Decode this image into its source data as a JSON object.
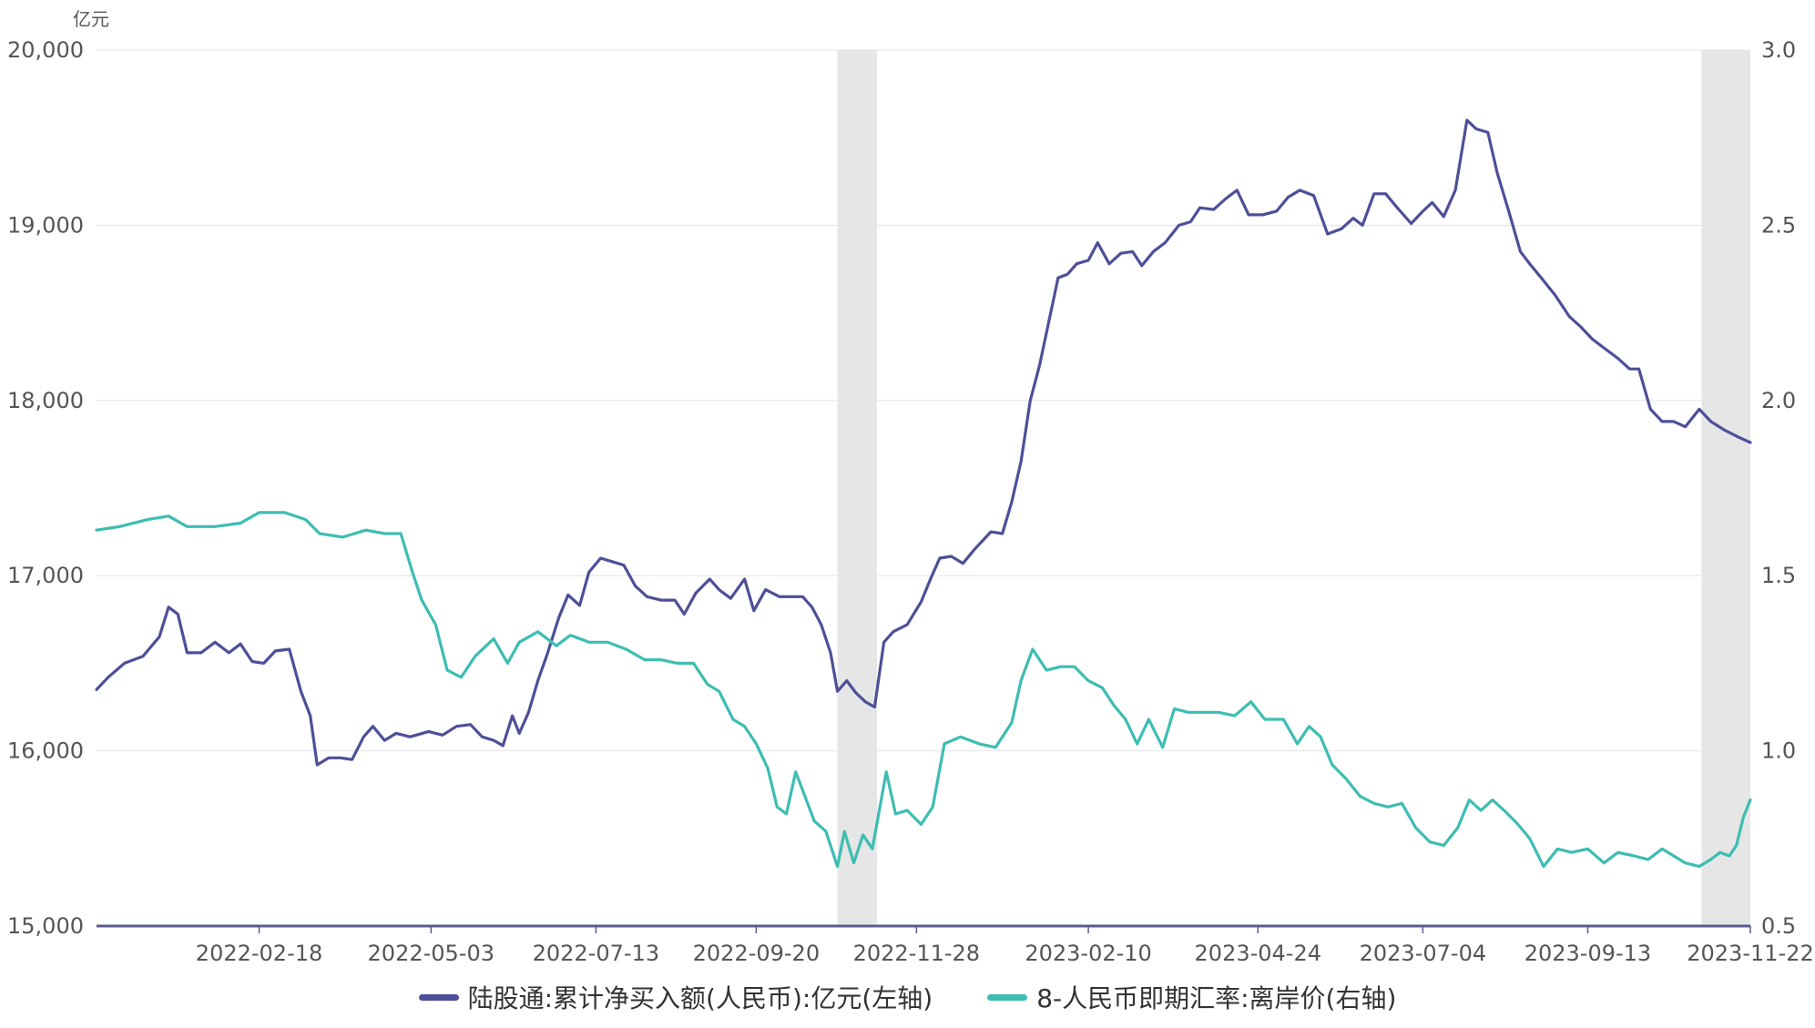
{
  "chart_data": {
    "type": "line",
    "left_unit": "亿元",
    "y_left": {
      "min": 15000,
      "max": 20000,
      "ticks": [
        "15,000",
        "16,000",
        "17,000",
        "18,000",
        "19,000",
        "20,000"
      ]
    },
    "y_right": {
      "min": 0.5,
      "max": 3.0,
      "ticks": [
        "0.5",
        "1.0",
        "1.5",
        "2.0",
        "2.5",
        "3.0"
      ]
    },
    "x_range": [
      "2021-12-10",
      "2023-11-22"
    ],
    "x_ticks": [
      "2022-02-18",
      "2022-05-03",
      "2022-07-13",
      "2022-09-20",
      "2022-11-28",
      "2023-02-10",
      "2023-04-24",
      "2023-07-04",
      "2023-09-13",
      "2023-11-22"
    ],
    "shaded_periods": [
      [
        "2022-10-25",
        "2022-11-11"
      ],
      [
        "2023-11-01",
        "2023-11-22"
      ]
    ],
    "grid": "horizontal",
    "legend_position": "bottom",
    "series": [
      {
        "name": "陆股通:累计净买入额(人民币):亿元(左轴)",
        "axis": "left",
        "color": "#4e4f99",
        "points": [
          [
            "2021-12-10",
            16350
          ],
          [
            "2021-12-15",
            16420
          ],
          [
            "2021-12-22",
            16500
          ],
          [
            "2021-12-30",
            16540
          ],
          [
            "2022-01-06",
            16650
          ],
          [
            "2022-01-10",
            16820
          ],
          [
            "2022-01-14",
            16780
          ],
          [
            "2022-01-18",
            16560
          ],
          [
            "2022-01-24",
            16560
          ],
          [
            "2022-01-30",
            16620
          ],
          [
            "2022-02-05",
            16560
          ],
          [
            "2022-02-10",
            16610
          ],
          [
            "2022-02-15",
            16510
          ],
          [
            "2022-02-20",
            16500
          ],
          [
            "2022-02-25",
            16570
          ],
          [
            "2022-03-03",
            16580
          ],
          [
            "2022-03-08",
            16340
          ],
          [
            "2022-03-12",
            16200
          ],
          [
            "2022-03-15",
            15920
          ],
          [
            "2022-03-20",
            15960
          ],
          [
            "2022-03-25",
            15960
          ],
          [
            "2022-03-30",
            15950
          ],
          [
            "2022-04-04",
            16080
          ],
          [
            "2022-04-08",
            16140
          ],
          [
            "2022-04-13",
            16060
          ],
          [
            "2022-04-18",
            16100
          ],
          [
            "2022-04-24",
            16080
          ],
          [
            "2022-05-02",
            16110
          ],
          [
            "2022-05-08",
            16090
          ],
          [
            "2022-05-14",
            16140
          ],
          [
            "2022-05-20",
            16150
          ],
          [
            "2022-05-25",
            16080
          ],
          [
            "2022-05-30",
            16060
          ],
          [
            "2022-06-03",
            16030
          ],
          [
            "2022-06-07",
            16200
          ],
          [
            "2022-06-10",
            16100
          ],
          [
            "2022-06-14",
            16220
          ],
          [
            "2022-06-18",
            16400
          ],
          [
            "2022-06-22",
            16550
          ],
          [
            "2022-06-27",
            16760
          ],
          [
            "2022-07-01",
            16890
          ],
          [
            "2022-07-06",
            16830
          ],
          [
            "2022-07-10",
            17020
          ],
          [
            "2022-07-15",
            17100
          ],
          [
            "2022-07-20",
            17080
          ],
          [
            "2022-07-25",
            17060
          ],
          [
            "2022-07-30",
            16940
          ],
          [
            "2022-08-04",
            16880
          ],
          [
            "2022-08-10",
            16860
          ],
          [
            "2022-08-16",
            16860
          ],
          [
            "2022-08-20",
            16780
          ],
          [
            "2022-08-25",
            16900
          ],
          [
            "2022-08-31",
            16980
          ],
          [
            "2022-09-04",
            16920
          ],
          [
            "2022-09-09",
            16870
          ],
          [
            "2022-09-15",
            16980
          ],
          [
            "2022-09-19",
            16800
          ],
          [
            "2022-09-24",
            16920
          ],
          [
            "2022-09-30",
            16880
          ],
          [
            "2022-10-05",
            16880
          ],
          [
            "2022-10-10",
            16880
          ],
          [
            "2022-10-14",
            16820
          ],
          [
            "2022-10-18",
            16720
          ],
          [
            "2022-10-22",
            16560
          ],
          [
            "2022-10-25",
            16340
          ],
          [
            "2022-10-29",
            16400
          ],
          [
            "2022-11-02",
            16330
          ],
          [
            "2022-11-06",
            16280
          ],
          [
            "2022-11-10",
            16250
          ],
          [
            "2022-11-14",
            16620
          ],
          [
            "2022-11-18",
            16680
          ],
          [
            "2022-11-24",
            16720
          ],
          [
            "2022-11-30",
            16850
          ],
          [
            "2022-12-04",
            16980
          ],
          [
            "2022-12-08",
            17100
          ],
          [
            "2022-12-13",
            17110
          ],
          [
            "2022-12-18",
            17070
          ],
          [
            "2022-12-23",
            17150
          ],
          [
            "2022-12-30",
            17250
          ],
          [
            "2023-01-04",
            17240
          ],
          [
            "2023-01-08",
            17420
          ],
          [
            "2023-01-12",
            17650
          ],
          [
            "2023-01-16",
            18000
          ],
          [
            "2023-01-20",
            18200
          ],
          [
            "2023-01-24",
            18450
          ],
          [
            "2023-01-28",
            18700
          ],
          [
            "2023-02-01",
            18720
          ],
          [
            "2023-02-05",
            18780
          ],
          [
            "2023-02-10",
            18800
          ],
          [
            "2023-02-14",
            18900
          ],
          [
            "2023-02-19",
            18780
          ],
          [
            "2023-02-24",
            18840
          ],
          [
            "2023-03-01",
            18850
          ],
          [
            "2023-03-05",
            18770
          ],
          [
            "2023-03-10",
            18850
          ],
          [
            "2023-03-15",
            18900
          ],
          [
            "2023-03-21",
            19000
          ],
          [
            "2023-03-26",
            19020
          ],
          [
            "2023-03-30",
            19100
          ],
          [
            "2023-04-05",
            19090
          ],
          [
            "2023-04-10",
            19150
          ],
          [
            "2023-04-15",
            19200
          ],
          [
            "2023-04-20",
            19060
          ],
          [
            "2023-04-26",
            19060
          ],
          [
            "2023-05-02",
            19080
          ],
          [
            "2023-05-07",
            19160
          ],
          [
            "2023-05-12",
            19200
          ],
          [
            "2023-05-18",
            19170
          ],
          [
            "2023-05-24",
            18950
          ],
          [
            "2023-05-30",
            18980
          ],
          [
            "2023-06-04",
            19040
          ],
          [
            "2023-06-08",
            19000
          ],
          [
            "2023-06-13",
            19180
          ],
          [
            "2023-06-18",
            19180
          ],
          [
            "2023-06-23",
            19100
          ],
          [
            "2023-06-29",
            19010
          ],
          [
            "2023-07-04",
            19080
          ],
          [
            "2023-07-08",
            19130
          ],
          [
            "2023-07-13",
            19050
          ],
          [
            "2023-07-18",
            19200
          ],
          [
            "2023-07-23",
            19600
          ],
          [
            "2023-07-27",
            19550
          ],
          [
            "2023-08-01",
            19530
          ],
          [
            "2023-08-05",
            19300
          ],
          [
            "2023-08-10",
            19080
          ],
          [
            "2023-08-15",
            18850
          ],
          [
            "2023-08-19",
            18780
          ],
          [
            "2023-08-24",
            18700
          ],
          [
            "2023-08-30",
            18600
          ],
          [
            "2023-09-05",
            18480
          ],
          [
            "2023-09-10",
            18420
          ],
          [
            "2023-09-15",
            18350
          ],
          [
            "2023-09-20",
            18300
          ],
          [
            "2023-09-26",
            18240
          ],
          [
            "2023-10-01",
            18180
          ],
          [
            "2023-10-05",
            18180
          ],
          [
            "2023-10-10",
            17950
          ],
          [
            "2023-10-15",
            17880
          ],
          [
            "2023-10-20",
            17880
          ],
          [
            "2023-10-25",
            17850
          ],
          [
            "2023-10-31",
            17950
          ],
          [
            "2023-11-05",
            17880
          ],
          [
            "2023-11-11",
            17830
          ],
          [
            "2023-11-17",
            17790
          ],
          [
            "2023-11-22",
            17760
          ]
        ]
      },
      {
        "name": "8-人民币即期汇率:离岸价(右轴)",
        "axis": "right",
        "color": "#3dbdb2",
        "points": [
          [
            "2021-12-10",
            1.63
          ],
          [
            "2021-12-20",
            1.64
          ],
          [
            "2022-01-01",
            1.66
          ],
          [
            "2022-01-10",
            1.67
          ],
          [
            "2022-01-18",
            1.64
          ],
          [
            "2022-01-30",
            1.64
          ],
          [
            "2022-02-10",
            1.65
          ],
          [
            "2022-02-18",
            1.68
          ],
          [
            "2022-03-01",
            1.68
          ],
          [
            "2022-03-10",
            1.66
          ],
          [
            "2022-03-16",
            1.62
          ],
          [
            "2022-03-26",
            1.61
          ],
          [
            "2022-04-05",
            1.63
          ],
          [
            "2022-04-13",
            1.62
          ],
          [
            "2022-04-20",
            1.62
          ],
          [
            "2022-04-25",
            1.51
          ],
          [
            "2022-04-29",
            1.43
          ],
          [
            "2022-05-05",
            1.36
          ],
          [
            "2022-05-10",
            1.23
          ],
          [
            "2022-05-16",
            1.21
          ],
          [
            "2022-05-22",
            1.27
          ],
          [
            "2022-05-30",
            1.32
          ],
          [
            "2022-06-05",
            1.25
          ],
          [
            "2022-06-10",
            1.31
          ],
          [
            "2022-06-18",
            1.34
          ],
          [
            "2022-06-26",
            1.3
          ],
          [
            "2022-07-02",
            1.33
          ],
          [
            "2022-07-10",
            1.31
          ],
          [
            "2022-07-18",
            1.31
          ],
          [
            "2022-07-26",
            1.29
          ],
          [
            "2022-08-03",
            1.26
          ],
          [
            "2022-08-10",
            1.26
          ],
          [
            "2022-08-17",
            1.25
          ],
          [
            "2022-08-24",
            1.25
          ],
          [
            "2022-08-30",
            1.19
          ],
          [
            "2022-09-04",
            1.17
          ],
          [
            "2022-09-10",
            1.09
          ],
          [
            "2022-09-15",
            1.07
          ],
          [
            "2022-09-20",
            1.02
          ],
          [
            "2022-09-25",
            0.95
          ],
          [
            "2022-09-29",
            0.84
          ],
          [
            "2022-10-03",
            0.82
          ],
          [
            "2022-10-07",
            0.94
          ],
          [
            "2022-10-11",
            0.87
          ],
          [
            "2022-10-15",
            0.8
          ],
          [
            "2022-10-20",
            0.77
          ],
          [
            "2022-10-25",
            0.67
          ],
          [
            "2022-10-28",
            0.77
          ],
          [
            "2022-11-01",
            0.68
          ],
          [
            "2022-11-05",
            0.76
          ],
          [
            "2022-11-09",
            0.72
          ],
          [
            "2022-11-12",
            0.83
          ],
          [
            "2022-11-15",
            0.94
          ],
          [
            "2022-11-19",
            0.82
          ],
          [
            "2022-11-24",
            0.83
          ],
          [
            "2022-11-30",
            0.79
          ],
          [
            "2022-12-05",
            0.84
          ],
          [
            "2022-12-10",
            1.02
          ],
          [
            "2022-12-17",
            1.04
          ],
          [
            "2022-12-25",
            1.02
          ],
          [
            "2023-01-01",
            1.01
          ],
          [
            "2023-01-08",
            1.08
          ],
          [
            "2023-01-12",
            1.2
          ],
          [
            "2023-01-17",
            1.29
          ],
          [
            "2023-01-23",
            1.23
          ],
          [
            "2023-01-29",
            1.24
          ],
          [
            "2023-02-04",
            1.24
          ],
          [
            "2023-02-10",
            1.2
          ],
          [
            "2023-02-16",
            1.18
          ],
          [
            "2023-02-21",
            1.13
          ],
          [
            "2023-02-26",
            1.09
          ],
          [
            "2023-03-03",
            1.02
          ],
          [
            "2023-03-08",
            1.09
          ],
          [
            "2023-03-14",
            1.01
          ],
          [
            "2023-03-19",
            1.12
          ],
          [
            "2023-03-25",
            1.11
          ],
          [
            "2023-03-31",
            1.11
          ],
          [
            "2023-04-07",
            1.11
          ],
          [
            "2023-04-14",
            1.1
          ],
          [
            "2023-04-21",
            1.14
          ],
          [
            "2023-04-27",
            1.09
          ],
          [
            "2023-05-05",
            1.09
          ],
          [
            "2023-05-11",
            1.02
          ],
          [
            "2023-05-16",
            1.07
          ],
          [
            "2023-05-21",
            1.04
          ],
          [
            "2023-05-26",
            0.96
          ],
          [
            "2023-06-01",
            0.92
          ],
          [
            "2023-06-07",
            0.87
          ],
          [
            "2023-06-13",
            0.85
          ],
          [
            "2023-06-19",
            0.84
          ],
          [
            "2023-06-25",
            0.85
          ],
          [
            "2023-07-01",
            0.78
          ],
          [
            "2023-07-07",
            0.74
          ],
          [
            "2023-07-13",
            0.73
          ],
          [
            "2023-07-19",
            0.78
          ],
          [
            "2023-07-24",
            0.86
          ],
          [
            "2023-07-29",
            0.83
          ],
          [
            "2023-08-03",
            0.86
          ],
          [
            "2023-08-08",
            0.83
          ],
          [
            "2023-08-14",
            0.79
          ],
          [
            "2023-08-19",
            0.75
          ],
          [
            "2023-08-25",
            0.67
          ],
          [
            "2023-08-31",
            0.72
          ],
          [
            "2023-09-06",
            0.71
          ],
          [
            "2023-09-13",
            0.72
          ],
          [
            "2023-09-20",
            0.68
          ],
          [
            "2023-09-26",
            0.71
          ],
          [
            "2023-10-03",
            0.7
          ],
          [
            "2023-10-09",
            0.69
          ],
          [
            "2023-10-15",
            0.72
          ],
          [
            "2023-10-20",
            0.7
          ],
          [
            "2023-10-25",
            0.68
          ],
          [
            "2023-10-31",
            0.67
          ],
          [
            "2023-11-05",
            0.69
          ],
          [
            "2023-11-09",
            0.71
          ],
          [
            "2023-11-13",
            0.7
          ],
          [
            "2023-11-16",
            0.73
          ],
          [
            "2023-11-19",
            0.81
          ],
          [
            "2023-11-22",
            0.86
          ]
        ]
      }
    ]
  }
}
